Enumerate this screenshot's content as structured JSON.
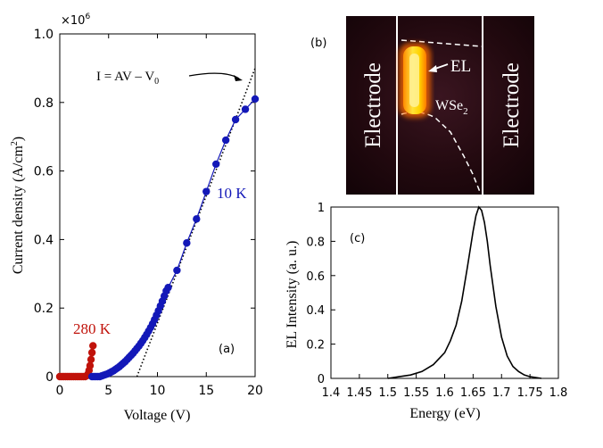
{
  "chart_data": [
    {
      "panel": "(a)",
      "type": "scatter",
      "multiplier": "×10",
      "multiplier_exp": "6",
      "xlabel": "Voltage (V)",
      "ylabel": "Current density (A/cm",
      "ylabel_sup": "2",
      "ylabel_end": ")",
      "xlim": [
        0,
        20
      ],
      "ylim": [
        0,
        1.0
      ],
      "x_ticks": [
        0,
        5,
        10,
        15,
        20
      ],
      "y_ticks": [
        0,
        0.2,
        0.4,
        0.6,
        0.8,
        1.0
      ],
      "x_tick_labels": [
        "0",
        "5",
        "10",
        "15",
        "20"
      ],
      "y_tick_labels": [
        "0",
        "0.2",
        "0.4",
        "0.6",
        "0.8",
        "1.0"
      ],
      "annotation": {
        "text": "I = AV – V",
        "sub": "0"
      },
      "fit_line": {
        "x": [
          7.9,
          20.0
        ],
        "y": [
          0.0,
          0.9
        ]
      },
      "series": [
        {
          "name": "280 K",
          "color": "#c0120a",
          "x": [
            0.0,
            0.2,
            0.4,
            0.6,
            0.8,
            1.0,
            1.2,
            1.4,
            1.6,
            1.8,
            2.0,
            2.2,
            2.4,
            2.6,
            2.8,
            2.9,
            3.0,
            3.1,
            3.2,
            3.3,
            3.4
          ],
          "y": [
            0.0,
            0.0,
            0.0,
            0.0,
            0.0,
            0.0,
            0.0,
            0.0,
            0.0,
            0.0,
            0.0,
            0.0,
            0.0,
            0.0,
            0.003,
            0.008,
            0.018,
            0.032,
            0.05,
            0.07,
            0.09
          ]
        },
        {
          "name": "10 K",
          "color": "#1318b8",
          "x": [
            3.3,
            3.5,
            3.7,
            3.9,
            4.1,
            4.3,
            4.5,
            4.7,
            4.9,
            5.1,
            5.3,
            5.5,
            5.7,
            5.9,
            6.1,
            6.3,
            6.5,
            6.7,
            6.9,
            7.1,
            7.3,
            7.5,
            7.7,
            7.9,
            8.1,
            8.3,
            8.5,
            8.7,
            8.9,
            9.1,
            9.3,
            9.5,
            9.7,
            9.9,
            10.1,
            10.3,
            10.5,
            10.7,
            10.9,
            11.1,
            12.0,
            13.0,
            14.0,
            15.0,
            16.0,
            17.0,
            18.0,
            19.0,
            20.0
          ],
          "y": [
            0.0,
            0.0,
            0.0,
            0.0,
            0.0,
            0.002,
            0.004,
            0.006,
            0.008,
            0.011,
            0.014,
            0.017,
            0.021,
            0.025,
            0.029,
            0.034,
            0.039,
            0.044,
            0.05,
            0.056,
            0.062,
            0.068,
            0.075,
            0.082,
            0.089,
            0.097,
            0.105,
            0.114,
            0.123,
            0.133,
            0.143,
            0.154,
            0.166,
            0.179,
            0.192,
            0.206,
            0.22,
            0.235,
            0.25,
            0.26,
            0.31,
            0.39,
            0.46,
            0.54,
            0.62,
            0.69,
            0.75,
            0.78,
            0.81
          ]
        }
      ],
      "series_label_color": {
        "280 K": "#c0120a",
        "10 K": "#1318b8"
      }
    },
    {
      "panel": "(b)",
      "type": "image",
      "labels": {
        "electrode_left": "Electrode",
        "electrode_right": "Electrode",
        "el": "EL",
        "wse2": "WSe",
        "wse2_sub": "2"
      }
    },
    {
      "panel": "(c)",
      "type": "line",
      "xlabel": "Energy  (eV)",
      "ylabel": "EL Intensity (a. u.)",
      "xlim": [
        1.4,
        1.8
      ],
      "ylim": [
        0,
        1
      ],
      "x_ticks": [
        1.4,
        1.45,
        1.5,
        1.55,
        1.6,
        1.65,
        1.7,
        1.75,
        1.8
      ],
      "x_tick_labels": [
        "1.4",
        "1.45",
        "1.5",
        "1.55",
        "1.6",
        "1.65",
        "1.7",
        "1.75",
        "1.8"
      ],
      "y_ticks": [
        0,
        0.2,
        0.4,
        0.6,
        0.8,
        1
      ],
      "y_tick_labels": [
        "0",
        "0.2",
        "0.4",
        "0.6",
        "0.8",
        "1"
      ],
      "series": [
        {
          "color": "#000000",
          "x": [
            1.5,
            1.52,
            1.54,
            1.56,
            1.58,
            1.6,
            1.61,
            1.62,
            1.63,
            1.64,
            1.65,
            1.655,
            1.66,
            1.665,
            1.67,
            1.675,
            1.68,
            1.69,
            1.7,
            1.71,
            1.72,
            1.73,
            1.74,
            1.75,
            1.77
          ],
          "y": [
            0.0,
            0.01,
            0.02,
            0.04,
            0.08,
            0.15,
            0.22,
            0.31,
            0.45,
            0.65,
            0.86,
            0.95,
            1.0,
            0.98,
            0.91,
            0.8,
            0.66,
            0.42,
            0.24,
            0.13,
            0.07,
            0.04,
            0.02,
            0.01,
            0.0
          ]
        }
      ]
    }
  ]
}
